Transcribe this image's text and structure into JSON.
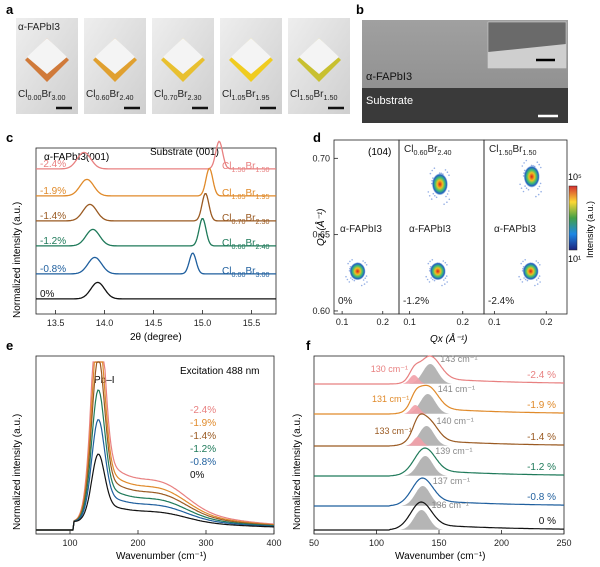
{
  "colors": {
    "black": "#111111",
    "blue": "#1f5f9e",
    "green": "#1f7a5a",
    "brown": "#9a5a22",
    "orange": "#e08a2a",
    "pink": "#e88080"
  },
  "panels": {
    "a": {
      "letter": "a",
      "crystals": [
        {
          "label": "α-FAPbI3",
          "sub": [
            "Cl",
            "0.00",
            "Br",
            "3.00"
          ],
          "rim": "#d07a3a"
        },
        {
          "label": "",
          "sub": [
            "Cl",
            "0.60",
            "Br",
            "2.40"
          ],
          "rim": "#e0a030"
        },
        {
          "label": "",
          "sub": [
            "Cl",
            "0.70",
            "Br",
            "2.30"
          ],
          "rim": "#e8c030"
        },
        {
          "label": "",
          "sub": [
            "Cl",
            "1.05",
            "Br",
            "1.95"
          ],
          "rim": "#f0cc20"
        },
        {
          "label": "",
          "sub": [
            "Cl",
            "1.50",
            "Br",
            "1.50"
          ],
          "rim": "#c8c030"
        }
      ]
    },
    "b": {
      "letter": "b",
      "film_label": "α-FAPbI3",
      "substrate_label": "Substrate"
    },
    "c": {
      "letter": "c",
      "peak_left": "α-FAPbI3(001)",
      "peak_right": "Substrate (001)",
      "ylabel": "Normalized intensity (a.u.)",
      "xlabel": "2θ (degree)",
      "xticks": [
        "13.5",
        "14.0",
        "14.5",
        "15.0",
        "15.5"
      ],
      "strains": [
        "-2.4%",
        "-1.9%",
        "-1.4%",
        "-1.2%",
        "-0.8%",
        "0%"
      ],
      "compositions": [
        [
          "Cl",
          "1.50",
          "Br",
          "1.50"
        ],
        [
          "Cl",
          "1.05",
          "Br",
          "1.95"
        ],
        [
          "Cl",
          "0.70",
          "Br",
          "2.30"
        ],
        [
          "Cl",
          "0.60",
          "Br",
          "2.40"
        ],
        [
          "Cl",
          "0.00",
          "Br",
          "3.00"
        ]
      ]
    },
    "d": {
      "letter": "d",
      "reflection": "(104)",
      "ylabel": "Qz (Å⁻¹)",
      "xlabel": "Qx (Å⁻¹)",
      "yticks": [
        "0.70",
        "0.65",
        "0.60"
      ],
      "xticks": [
        "0.1",
        "0.2"
      ],
      "sub_strains": [
        "0%",
        "-1.2%",
        "-2.4%"
      ],
      "film_label": "α-FAPbI3",
      "compositions": [
        [
          "Cl",
          "0.60",
          "Br",
          "2.40"
        ],
        [
          "Cl",
          "1.50",
          "Br",
          "1.50"
        ]
      ],
      "colorbar_label": "Intensity (a.u.)",
      "colorbar_max": "10⁵",
      "colorbar_min": "10¹"
    },
    "e": {
      "letter": "e",
      "peak_label": "Pb–I",
      "excitation": "Excitation 488 nm",
      "ylabel": "Normalized intensity (a.u.)",
      "xlabel": "Wavenumber (cm⁻¹)",
      "xticks": [
        "100",
        "200",
        "300",
        "400"
      ],
      "strains": [
        "-2.4%",
        "-1.9%",
        "-1.4%",
        "-1.2%",
        "-0.8%",
        "0%"
      ]
    },
    "f": {
      "letter": "f",
      "ylabel": "Normalized intensity (a.u.)",
      "xlabel": "Wavenumber (cm⁻¹)",
      "xticks": [
        "50",
        "100",
        "150",
        "200",
        "250"
      ],
      "left_peaks": [
        "130 cm⁻¹",
        "131 cm⁻¹",
        "133 cm⁻¹"
      ],
      "right_peaks": [
        "143 cm⁻¹",
        "141 cm⁻¹",
        "140 cm⁻¹",
        "139 cm⁻¹",
        "137 cm⁻¹",
        "136 cm⁻¹"
      ],
      "strains": [
        "-2.4 %",
        "-1.9 %",
        "-1.4 %",
        "-1.2 %",
        "-0.8 %",
        "0 %"
      ]
    }
  },
  "chart_data": [
    {
      "type": "line",
      "panel": "c",
      "title": "",
      "xlabel": "2θ (degree)",
      "ylabel": "Normalized intensity (a.u.)",
      "xlim": [
        13.3,
        15.75
      ],
      "series": [
        {
          "name": "0%",
          "film_peak": 13.93,
          "substrate_peak": null
        },
        {
          "name": "-0.8%",
          "film_peak": 13.9,
          "substrate_peak": 14.9
        },
        {
          "name": "-1.2%",
          "film_peak": 13.88,
          "substrate_peak": 15.0
        },
        {
          "name": "-1.4%",
          "film_peak": 13.85,
          "substrate_peak": 15.03
        },
        {
          "name": "-1.9%",
          "film_peak": 13.82,
          "substrate_peak": 15.07
        },
        {
          "name": "-2.4%",
          "film_peak": 13.79,
          "substrate_peak": 15.17
        }
      ]
    },
    {
      "type": "scatter",
      "panel": "d",
      "xlabel": "Qx (Å⁻¹)",
      "ylabel": "Qz (Å⁻¹)",
      "xlim": [
        0.08,
        0.24
      ],
      "ylim": [
        0.598,
        0.712
      ],
      "maps": [
        {
          "strain": "0%",
          "spots": [
            {
              "qx": 0.138,
              "qz": 0.626
            }
          ]
        },
        {
          "strain": "-1.2%",
          "spots": [
            {
              "qx": 0.153,
              "qz": 0.626
            },
            {
              "qx": 0.157,
              "qz": 0.683
            }
          ]
        },
        {
          "strain": "-2.4%",
          "spots": [
            {
              "qx": 0.17,
              "qz": 0.626
            },
            {
              "qx": 0.172,
              "qz": 0.688
            }
          ]
        }
      ]
    },
    {
      "type": "line",
      "panel": "e",
      "xlabel": "Wavenumber (cm⁻¹)",
      "ylabel": "Normalized intensity (a.u.)",
      "xlim": [
        50,
        400
      ],
      "series": [
        {
          "name": "-2.4%",
          "peak_height": 0.92
        },
        {
          "name": "-1.9%",
          "peak_height": 0.78
        },
        {
          "name": "-1.4%",
          "peak_height": 0.67
        },
        {
          "name": "-1.2%",
          "peak_height": 0.54
        },
        {
          "name": "-0.8%",
          "peak_height": 0.42
        },
        {
          "name": "0%",
          "peak_height": 0.28
        }
      ]
    },
    {
      "type": "line",
      "panel": "f",
      "xlabel": "Wavenumber (cm⁻¹)",
      "ylabel": "Normalized intensity (a.u.)",
      "xlim": [
        50,
        250
      ],
      "series": [
        {
          "name": "-2.4 %",
          "peaks_cm1": [
            130,
            143
          ]
        },
        {
          "name": "-1.9 %",
          "peaks_cm1": [
            131,
            141
          ]
        },
        {
          "name": "-1.4 %",
          "peaks_cm1": [
            133,
            140
          ]
        },
        {
          "name": "-1.2 %",
          "peaks_cm1": [
            139
          ]
        },
        {
          "name": "-0.8 %",
          "peaks_cm1": [
            137
          ]
        },
        {
          "name": "0 %",
          "peaks_cm1": [
            136
          ]
        }
      ]
    }
  ]
}
